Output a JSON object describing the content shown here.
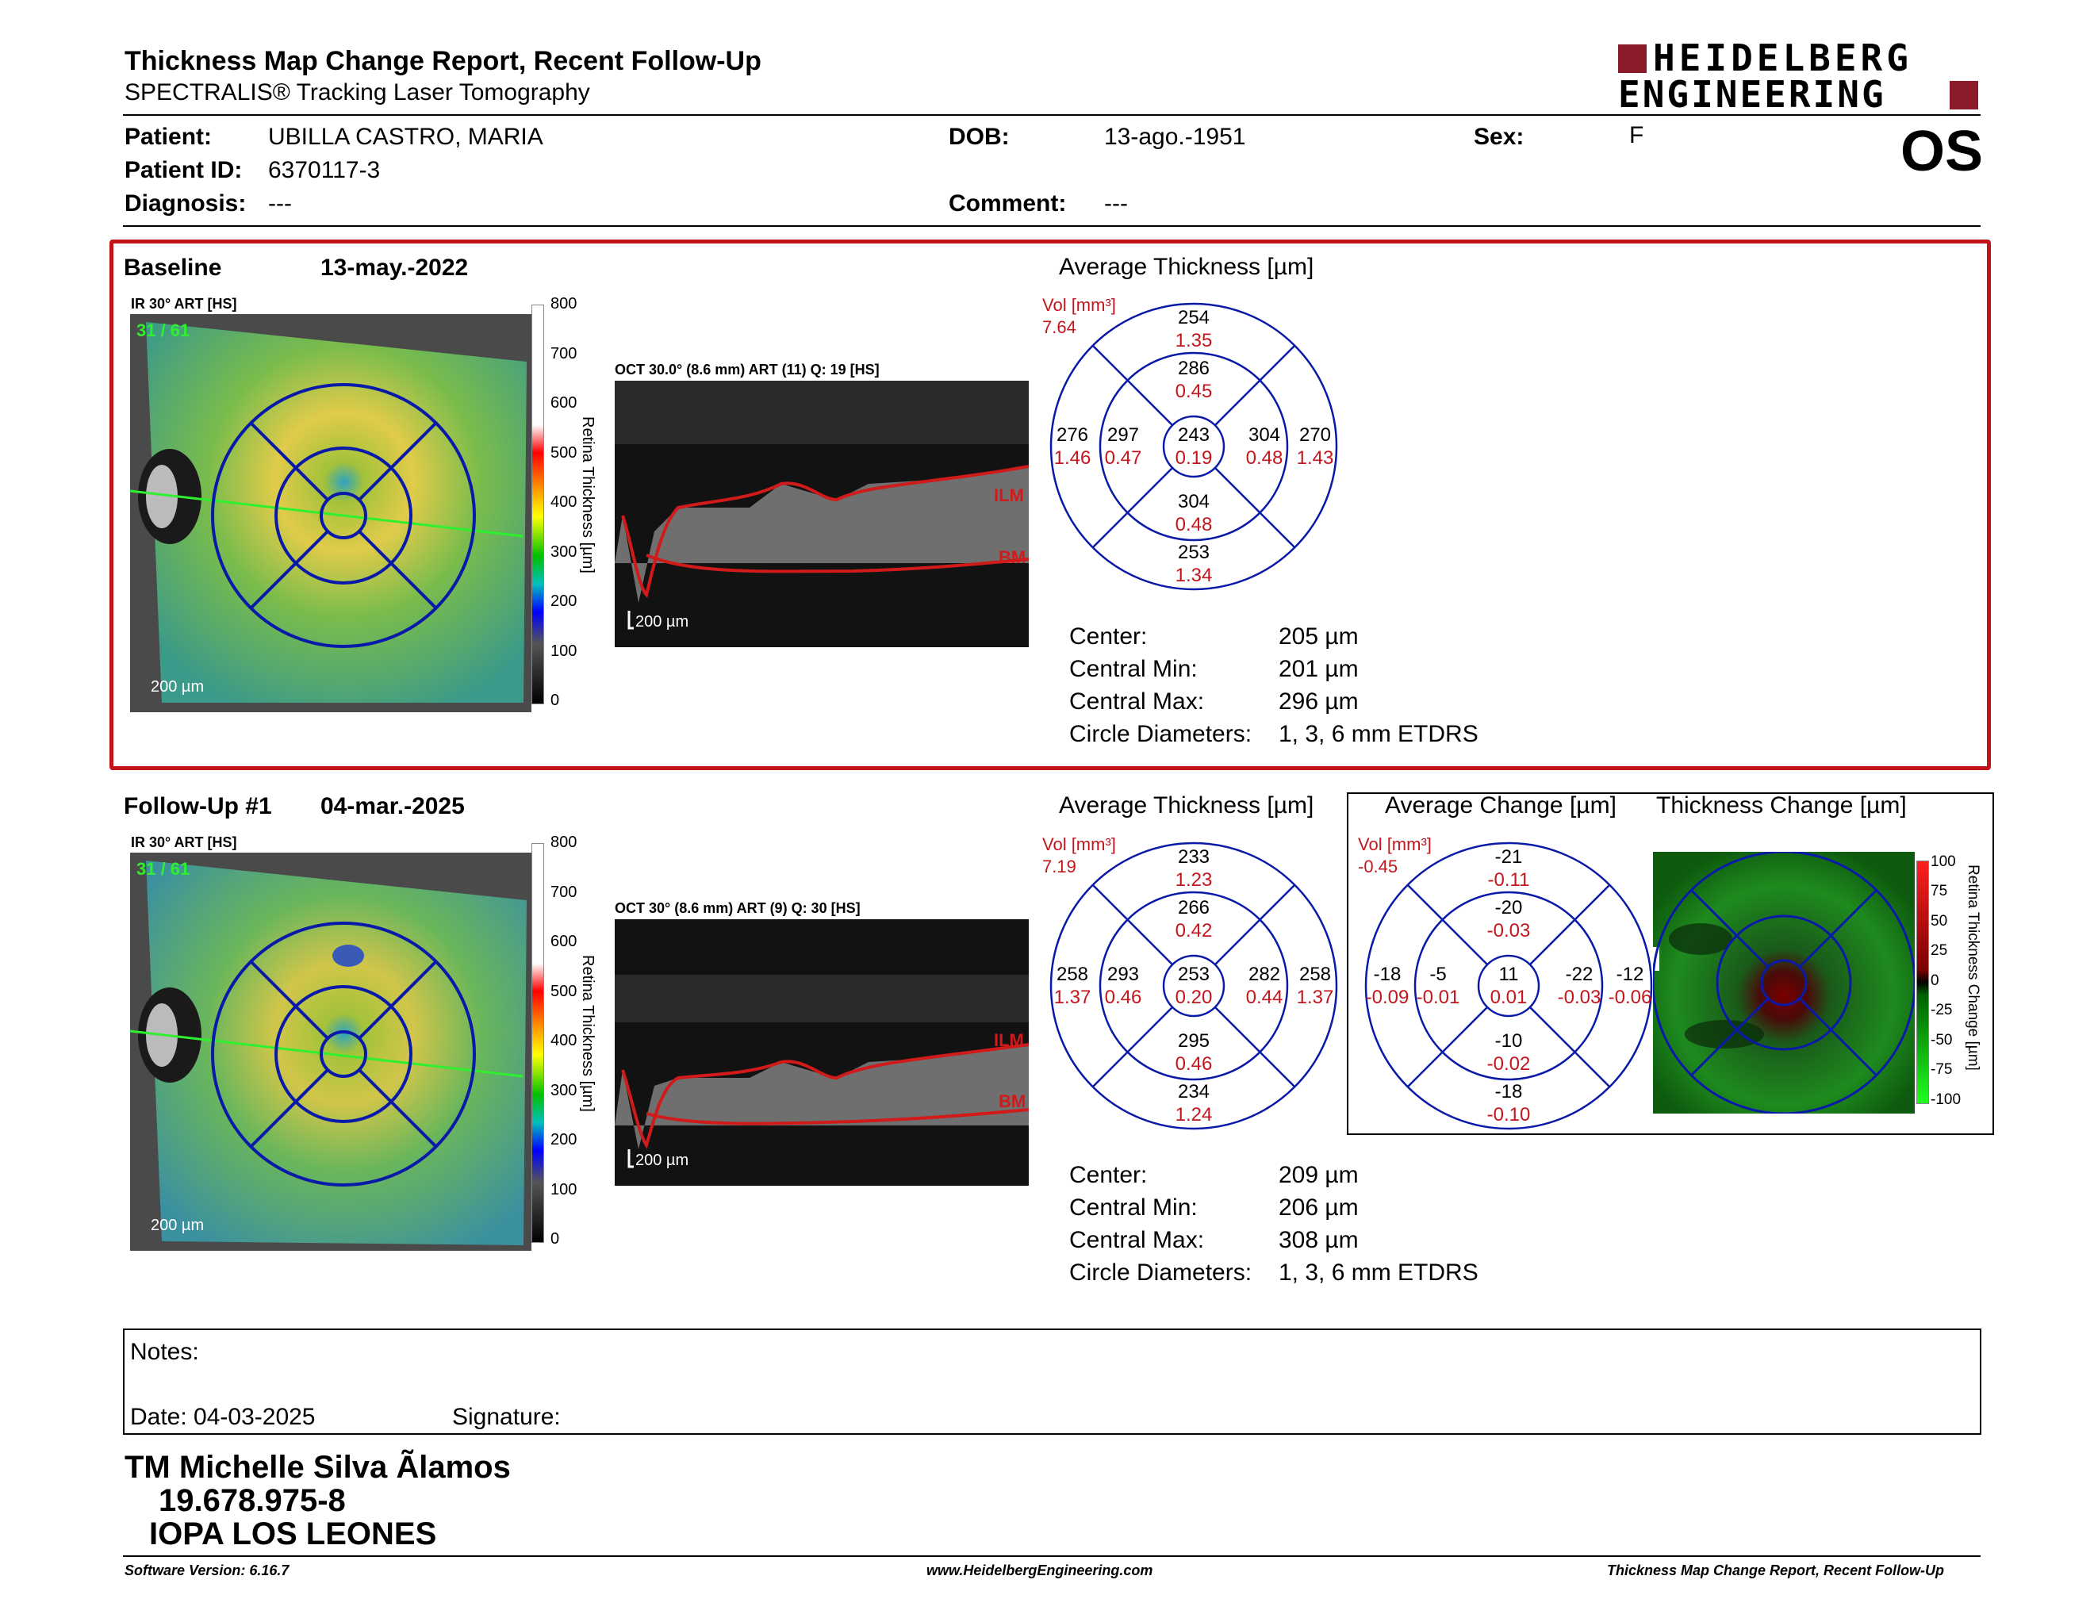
{
  "header": {
    "title": "Thickness Map Change Report, Recent Follow-Up",
    "subtitle": "SPECTRALIS® Tracking Laser Tomography",
    "logo_line1": "HEIDELBERG",
    "logo_line2": "ENGINEERING",
    "eye": "OS"
  },
  "patient": {
    "patient_label": "Patient:",
    "patient_value": "UBILLA CASTRO, MARIA",
    "id_label": "Patient ID:",
    "id_value": "6370117-3",
    "diagnosis_label": "Diagnosis:",
    "diagnosis_value": "---",
    "dob_label": "DOB:",
    "dob_value": "13-ago.-1951",
    "comment_label": "Comment:",
    "comment_value": "---",
    "sex_label": "Sex:",
    "sex_value": "F"
  },
  "baseline": {
    "label": "Baseline",
    "date": "13-may.-2022",
    "ir_caption": "IR 30° ART [HS]",
    "frame_counter": "31 / 61",
    "scale_bar": "200 µm",
    "scale_ticks": [
      "800",
      "700",
      "600",
      "500",
      "400",
      "300",
      "200",
      "100",
      "0"
    ],
    "scale_title": "Retina Thickness [µm]",
    "oct_caption": "OCT 30.0° (8.6 mm) ART (11) Q: 19 [HS]",
    "oct_scale_bar": "200 µm",
    "ilm": "ILM",
    "bm": "BM",
    "grid_title": "Average Thickness [µm]",
    "vol_label": "Vol [mm³]",
    "vol_value": "7.64",
    "grid": {
      "outer_top": {
        "t": "254",
        "v": "1.35"
      },
      "inner_top": {
        "t": "286",
        "v": "0.45"
      },
      "outer_left": {
        "t": "276",
        "v": "1.46"
      },
      "inner_left": {
        "t": "297",
        "v": "0.47"
      },
      "center": {
        "t": "243",
        "v": "0.19"
      },
      "inner_right": {
        "t": "304",
        "v": "0.48"
      },
      "outer_right": {
        "t": "270",
        "v": "1.43"
      },
      "inner_bottom": {
        "t": "304",
        "v": "0.48"
      },
      "outer_bottom": {
        "t": "253",
        "v": "1.34"
      }
    },
    "stats": {
      "center_label": "Center:",
      "center_value": "205 µm",
      "min_label": "Central Min:",
      "min_value": "201 µm",
      "max_label": "Central Max:",
      "max_value": "296 µm",
      "circ_label": "Circle Diameters:",
      "circ_value": "1, 3, 6 mm ETDRS"
    }
  },
  "followup": {
    "label": "Follow-Up #1",
    "date": "04-mar.-2025",
    "ir_caption": "IR 30° ART [HS]",
    "frame_counter": "31 / 61",
    "scale_bar": "200 µm",
    "scale_ticks": [
      "800",
      "700",
      "600",
      "500",
      "400",
      "300",
      "200",
      "100",
      "0"
    ],
    "scale_title": "Retina Thickness [µm]",
    "oct_caption": "OCT 30° (8.6 mm) ART (9) Q: 30 [HS]",
    "oct_scale_bar": "200 µm",
    "ilm": "ILM",
    "bm": "BM",
    "grid_title": "Average Thickness [µm]",
    "vol_label": "Vol [mm³]",
    "vol_value": "7.19",
    "grid": {
      "outer_top": {
        "t": "233",
        "v": "1.23"
      },
      "inner_top": {
        "t": "266",
        "v": "0.42"
      },
      "outer_left": {
        "t": "258",
        "v": "1.37"
      },
      "inner_left": {
        "t": "293",
        "v": "0.46"
      },
      "center": {
        "t": "253",
        "v": "0.20"
      },
      "inner_right": {
        "t": "282",
        "v": "0.44"
      },
      "outer_right": {
        "t": "258",
        "v": "1.37"
      },
      "inner_bottom": {
        "t": "295",
        "v": "0.46"
      },
      "outer_bottom": {
        "t": "234",
        "v": "1.24"
      }
    },
    "change_title": "Average Change [µm]",
    "change_vol_label": "Vol [mm³]",
    "change_vol_value": "-0.45",
    "change_grid": {
      "outer_top": {
        "t": "-21",
        "v": "-0.11"
      },
      "inner_top": {
        "t": "-20",
        "v": "-0.03"
      },
      "outer_left": {
        "t": "-18",
        "v": "-0.09"
      },
      "inner_left": {
        "t": "-5",
        "v": "-0.01"
      },
      "center": {
        "t": "11",
        "v": "0.01"
      },
      "inner_right": {
        "t": "-22",
        "v": "-0.03"
      },
      "outer_right": {
        "t": "-12",
        "v": "-0.06"
      },
      "inner_bottom": {
        "t": "-10",
        "v": "-0.02"
      },
      "outer_bottom": {
        "t": "-18",
        "v": "-0.10"
      }
    },
    "thickness_change_title": "Thickness Change [µm]",
    "change_scale_ticks": [
      "100",
      "75",
      "50",
      "25",
      "0",
      "-25",
      "-50",
      "-75",
      "-100"
    ],
    "change_scale_title": "Retina Thickness Change [µm]",
    "stats": {
      "center_label": "Center:",
      "center_value": "209 µm",
      "min_label": "Central Min:",
      "min_value": "206 µm",
      "max_label": "Central Max:",
      "max_value": "308 µm",
      "circ_label": "Circle Diameters:",
      "circ_value": "1, 3, 6 mm ETDRS"
    }
  },
  "notes": {
    "notes_label": "Notes:",
    "date_label": "Date: 04-03-2025",
    "signature_label": "Signature:"
  },
  "signature_block": {
    "line1": "TM Michelle Silva Ãlamos",
    "line2": "19.678.975-8",
    "line3": "IOPA LOS LEONES"
  },
  "footer": {
    "software": "Software Version: 6.16.7",
    "website": "www.HeidelbergEngineering.com",
    "report": "Thickness Map Change Report, Recent Follow-Up"
  },
  "colors": {
    "panel_border": "#c0131a",
    "grid_blue": "#0a1aa8",
    "volume_red": "#c4161c",
    "logo_red": "#8b1a2a"
  }
}
